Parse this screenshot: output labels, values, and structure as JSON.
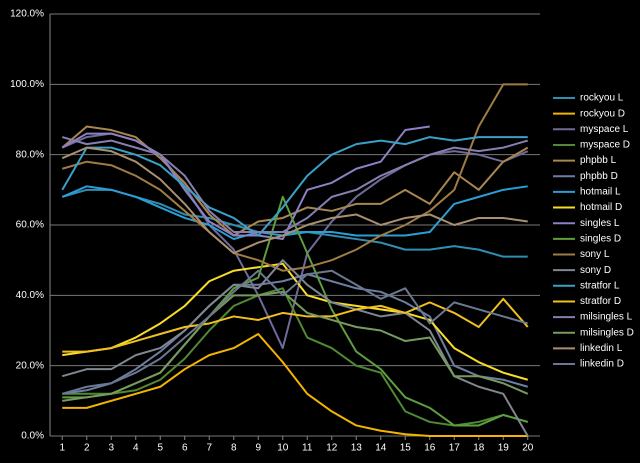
{
  "chart_data": {
    "type": "line",
    "x": [
      1,
      2,
      3,
      4,
      5,
      6,
      7,
      8,
      9,
      10,
      11,
      12,
      13,
      14,
      15,
      16,
      17,
      18,
      19,
      20
    ],
    "xlim": [
      0.5,
      20.5
    ],
    "xticks": [
      1,
      2,
      3,
      4,
      5,
      6,
      7,
      8,
      9,
      10,
      11,
      12,
      13,
      14,
      15,
      16,
      17,
      18,
      19,
      20
    ],
    "ylim": [
      0,
      120
    ],
    "yticks": [
      {
        "value": 0,
        "label": "0.0%"
      },
      {
        "value": 20,
        "label": "20.0%"
      },
      {
        "value": 40,
        "label": "40.0%"
      },
      {
        "value": 60,
        "label": "60.0%"
      },
      {
        "value": 80,
        "label": "80.0%"
      },
      {
        "value": 100,
        "label": "100.0%"
      },
      {
        "value": 120,
        "label": "120.0%"
      }
    ],
    "grid": true,
    "legend": "right",
    "series": [
      {
        "name": "rockyou L",
        "color": "#2f8fb3",
        "values": [
          68,
          70,
          70,
          68,
          66,
          63,
          62,
          60,
          58,
          58,
          58,
          57,
          56,
          55,
          53,
          53,
          54,
          53,
          51,
          51
        ]
      },
      {
        "name": "rockyou D",
        "color": "#f4b400",
        "values": [
          8,
          8,
          10,
          12,
          14,
          19,
          23,
          25,
          29,
          21,
          12,
          7,
          3,
          1.5,
          0.5,
          0,
          0,
          0,
          0,
          0
        ]
      },
      {
        "name": "myspace L",
        "color": "#6f6a99",
        "values": [
          82,
          85,
          86,
          84,
          80,
          71,
          60,
          53,
          40,
          25,
          52,
          61,
          68,
          73,
          77,
          80,
          81,
          80,
          78,
          81
        ]
      },
      {
        "name": "myspace D",
        "color": "#4f8a35",
        "values": [
          12,
          12,
          12,
          13,
          16,
          22,
          30,
          37,
          40,
          42,
          28,
          25,
          20,
          18,
          7,
          4,
          3,
          4,
          6,
          4
        ]
      },
      {
        "name": "phpbb L",
        "color": "#a8874f",
        "values": [
          82,
          88,
          87,
          85,
          79,
          72,
          63,
          57,
          61,
          62,
          65,
          64,
          66,
          66,
          70,
          66,
          75,
          70,
          78,
          82
        ]
      },
      {
        "name": "phpbb D",
        "color": "#6d7ea3",
        "values": [
          12,
          13,
          15,
          19,
          24,
          30,
          37,
          43,
          43,
          44,
          46,
          44,
          42,
          41,
          38,
          34,
          20,
          17,
          16,
          14
        ]
      },
      {
        "name": "hotmail L",
        "color": "#2a9fd6",
        "values": [
          68,
          71,
          70,
          68,
          65,
          62,
          60,
          56,
          58,
          57,
          58,
          58,
          57,
          57,
          57,
          58,
          66,
          68,
          70,
          71
        ]
      },
      {
        "name": "hotmail D",
        "color": "#f7dc2a",
        "values": [
          23,
          24,
          25,
          28,
          32,
          37,
          44,
          47,
          48,
          49,
          40,
          38,
          37,
          36,
          35,
          33,
          25,
          21,
          18,
          16
        ]
      },
      {
        "name": "singles L",
        "color": "#8e80c6",
        "values": [
          82,
          86,
          86,
          84,
          80,
          70,
          61,
          57,
          57,
          56,
          70,
          72,
          76,
          78,
          87,
          88,
          null,
          null,
          null,
          null
        ]
      },
      {
        "name": "singles D",
        "color": "#5e9e3e",
        "values": [
          11,
          11,
          12,
          15,
          18,
          26,
          34,
          42,
          45,
          68,
          52,
          36,
          24,
          19,
          11,
          8,
          3,
          3,
          6,
          4
        ]
      },
      {
        "name": "sony L",
        "color": "#a07c45",
        "values": [
          76,
          78,
          77,
          74,
          70,
          64,
          58,
          52,
          50,
          47,
          48,
          50,
          53,
          57,
          60,
          64,
          70,
          88,
          100,
          100
        ]
      },
      {
        "name": "sony D",
        "color": "#7f8790",
        "values": [
          17,
          19,
          19,
          23,
          25,
          30,
          37,
          43,
          42,
          50,
          43,
          38,
          36,
          34,
          35,
          30,
          17,
          14,
          12,
          0
        ]
      },
      {
        "name": "stratfor L",
        "color": "#3aa0c8",
        "values": [
          70,
          82,
          82,
          80,
          77,
          71,
          65,
          62,
          57,
          65,
          74,
          80,
          83,
          84,
          83,
          85,
          84,
          85,
          85,
          85
        ]
      },
      {
        "name": "stratfor D",
        "color": "#f0c020",
        "values": [
          24,
          24,
          25,
          27,
          29,
          31,
          32,
          34,
          33,
          35,
          34,
          34,
          36,
          37,
          35,
          38,
          35,
          31,
          39,
          31
        ]
      },
      {
        "name": "milsingles L",
        "color": "#8680b0",
        "values": [
          85,
          83,
          84,
          82,
          80,
          74,
          64,
          58,
          58,
          58,
          62,
          68,
          70,
          74,
          77,
          80,
          82,
          81,
          82,
          84
        ]
      },
      {
        "name": "milsingles D",
        "color": "#789a5e",
        "values": [
          10,
          11,
          12,
          15,
          18,
          26,
          34,
          40,
          40,
          41,
          35,
          33,
          31,
          30,
          27,
          28,
          17,
          17,
          15,
          12
        ]
      },
      {
        "name": "linkedin L",
        "color": "#a89070",
        "values": [
          79,
          82,
          81,
          78,
          73,
          66,
          58,
          52,
          55,
          57,
          60,
          62,
          63,
          60,
          62,
          63,
          60,
          62,
          62,
          61
        ]
      },
      {
        "name": "linkedin D",
        "color": "#6a7890",
        "values": [
          12,
          14,
          15,
          18,
          22,
          28,
          34,
          41,
          47,
          40,
          46,
          47,
          43,
          39,
          42,
          32,
          38,
          36,
          34,
          32
        ]
      }
    ]
  }
}
